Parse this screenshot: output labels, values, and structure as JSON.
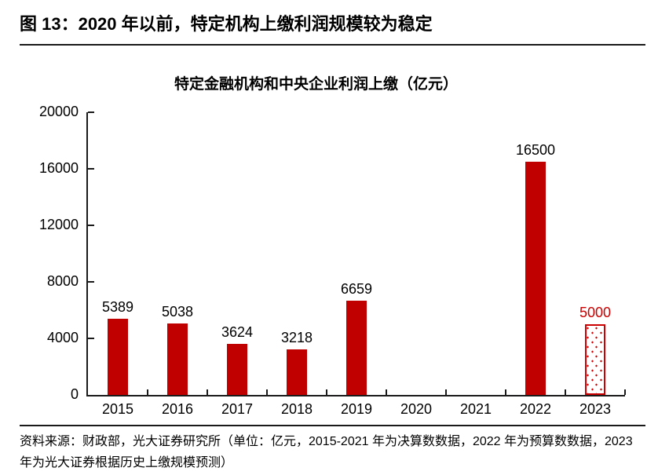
{
  "figure": {
    "title": "图 13：2020 年以前，特定机构上缴利润规模较为稳定",
    "source_note": "资料来源：财政部，光大证券研究所（单位：亿元，2015-2021 年为决算数数据，2022 年为预算数数据，2023 年为光大证券根据历史上缴规模预测）"
  },
  "chart_data": {
    "type": "bar",
    "title": "特定金融机构和中央企业利润上缴（亿元）",
    "categories": [
      "2015",
      "2016",
      "2017",
      "2018",
      "2019",
      "2020",
      "2021",
      "2022",
      "2023"
    ],
    "values": [
      5389,
      5038,
      3624,
      3218,
      6659,
      0,
      0,
      16500,
      5000
    ],
    "bar_labels": [
      "5389",
      "5038",
      "3624",
      "3218",
      "6659",
      "",
      "",
      "16500",
      "5000"
    ],
    "bar_styles": [
      "solid",
      "solid",
      "solid",
      "solid",
      "solid",
      "none",
      "none",
      "solid",
      "forecast"
    ],
    "xlabel": "",
    "ylabel": "",
    "ylim": [
      0,
      20000
    ],
    "yticks": [
      0,
      4000,
      8000,
      12000,
      16000,
      20000
    ],
    "grid": false,
    "legend_position": "none",
    "colors": {
      "solid_bar": "#C00000",
      "forecast_outline": "#CC0000",
      "forecast_label": "#CC0000",
      "value_label": "#000000",
      "axis": "#1A1A1A"
    }
  }
}
